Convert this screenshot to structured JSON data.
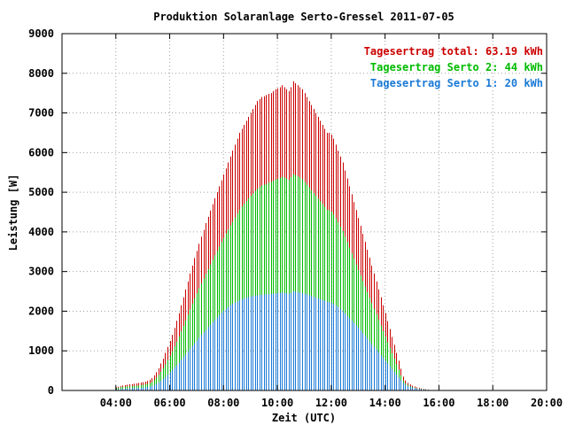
{
  "chart_data": {
    "type": "bar",
    "title": "Produktion Solaranlage Serto-Gressel 2011-07-05",
    "xlabel": "Zeit (UTC)",
    "ylabel": "Leistung [W]",
    "xlim": [
      "02:00",
      "20:00"
    ],
    "ylim": [
      0,
      9000
    ],
    "x_ticks": [
      "04:00",
      "06:00",
      "08:00",
      "10:00",
      "12:00",
      "14:00",
      "16:00",
      "18:00",
      "20:00"
    ],
    "y_ticks": [
      "0",
      "1000",
      "2000",
      "3000",
      "4000",
      "5000",
      "6000",
      "7000",
      "8000",
      "9000"
    ],
    "grid": true,
    "legend_position": "top-right",
    "x_start": "04:00",
    "x_step_minutes": 5,
    "series": [
      {
        "name": "Tagesertrag total: 63.19 kWh",
        "color": "#cc0000",
        "values": [
          80,
          95,
          110,
          125,
          135,
          145,
          155,
          160,
          170,
          180,
          190,
          200,
          210,
          220,
          240,
          270,
          310,
          380,
          460,
          560,
          680,
          800,
          950,
          1100,
          1250,
          1400,
          1580,
          1760,
          1950,
          2150,
          2350,
          2550,
          2750,
          2950,
          3150,
          3340,
          3520,
          3700,
          3880,
          4050,
          4220,
          4380,
          4540,
          4700,
          4850,
          5000,
          5150,
          5300,
          5450,
          5600,
          5750,
          5900,
          6050,
          6200,
          6350,
          6500,
          6600,
          6700,
          6800,
          6900,
          7000,
          7100,
          7200,
          7300,
          7350,
          7400,
          7420,
          7450,
          7480,
          7500,
          7550,
          7600,
          7620,
          7650,
          7700,
          7650,
          7600,
          7550,
          7650,
          7800,
          7750,
          7700,
          7650,
          7600,
          7500,
          7400,
          7300,
          7200,
          7100,
          7000,
          6900,
          6800,
          6700,
          6600,
          6500,
          6500,
          6450,
          6350,
          6200,
          6050,
          5900,
          5750,
          5550,
          5350,
          5150,
          4950,
          4750,
          4550,
          4350,
          4150,
          3950,
          3750,
          3550,
          3350,
          3150,
          2950,
          2750,
          2550,
          2350,
          2150,
          1950,
          1750,
          1550,
          1350,
          1150,
          950,
          750,
          550,
          350,
          250,
          190,
          150,
          120,
          100,
          80,
          65,
          50,
          40,
          30,
          20
        ]
      },
      {
        "name": "Tagesertrag Serto 2: 44 kWh",
        "color": "#00bb00",
        "values": [
          60,
          70,
          80,
          90,
          95,
          100,
          105,
          110,
          115,
          120,
          125,
          130,
          140,
          150,
          165,
          185,
          215,
          260,
          320,
          390,
          470,
          560,
          660,
          770,
          880,
          990,
          1110,
          1230,
          1360,
          1490,
          1630,
          1770,
          1910,
          2050,
          2190,
          2320,
          2450,
          2580,
          2700,
          2820,
          2940,
          3060,
          3180,
          3300,
          3410,
          3520,
          3630,
          3740,
          3850,
          3960,
          4060,
          4160,
          4260,
          4360,
          4460,
          4560,
          4640,
          4710,
          4780,
          4850,
          4910,
          4970,
          5030,
          5090,
          5130,
          5170,
          5190,
          5210,
          5240,
          5260,
          5290,
          5320,
          5340,
          5360,
          5390,
          5370,
          5340,
          5310,
          5380,
          5460,
          5430,
          5400,
          5370,
          5330,
          5260,
          5190,
          5120,
          5050,
          4980,
          4910,
          4840,
          4770,
          4700,
          4630,
          4560,
          4550,
          4510,
          4440,
          4340,
          4240,
          4130,
          4020,
          3880,
          3740,
          3600,
          3460,
          3320,
          3180,
          3040,
          2900,
          2760,
          2620,
          2480,
          2340,
          2200,
          2060,
          1920,
          1780,
          1640,
          1500,
          1360,
          1220,
          1080,
          940,
          800,
          660,
          520,
          380,
          250,
          175,
          133,
          105,
          85,
          70,
          56,
          45,
          35,
          28,
          21,
          14
        ]
      },
      {
        "name": "Tagesertrag Serto 1: 20 kWh",
        "color": "#1a7ad6",
        "values": [
          25,
          30,
          35,
          40,
          45,
          48,
          52,
          55,
          58,
          62,
          65,
          70,
          75,
          80,
          90,
          100,
          115,
          140,
          170,
          200,
          240,
          290,
          340,
          400,
          460,
          520,
          580,
          640,
          700,
          770,
          840,
          910,
          980,
          1050,
          1120,
          1190,
          1260,
          1330,
          1400,
          1460,
          1530,
          1600,
          1660,
          1720,
          1780,
          1840,
          1900,
          1960,
          2010,
          2060,
          2110,
          2150,
          2190,
          2220,
          2250,
          2280,
          2300,
          2320,
          2340,
          2360,
          2370,
          2380,
          2390,
          2400,
          2410,
          2415,
          2420,
          2425,
          2430,
          2435,
          2440,
          2450,
          2455,
          2460,
          2470,
          2460,
          2450,
          2440,
          2460,
          2500,
          2490,
          2480,
          2470,
          2460,
          2440,
          2420,
          2400,
          2380,
          2360,
          2340,
          2320,
          2300,
          2280,
          2260,
          2240,
          2230,
          2210,
          2180,
          2140,
          2100,
          2050,
          2000,
          1940,
          1880,
          1820,
          1760,
          1700,
          1640,
          1580,
          1520,
          1450,
          1380,
          1310,
          1240,
          1170,
          1100,
          1030,
          960,
          890,
          820,
          750,
          680,
          610,
          540,
          470,
          400,
          330,
          260,
          190,
          140,
          110,
          90,
          75,
          60,
          48,
          38,
          30,
          24,
          18,
          12
        ]
      }
    ]
  }
}
